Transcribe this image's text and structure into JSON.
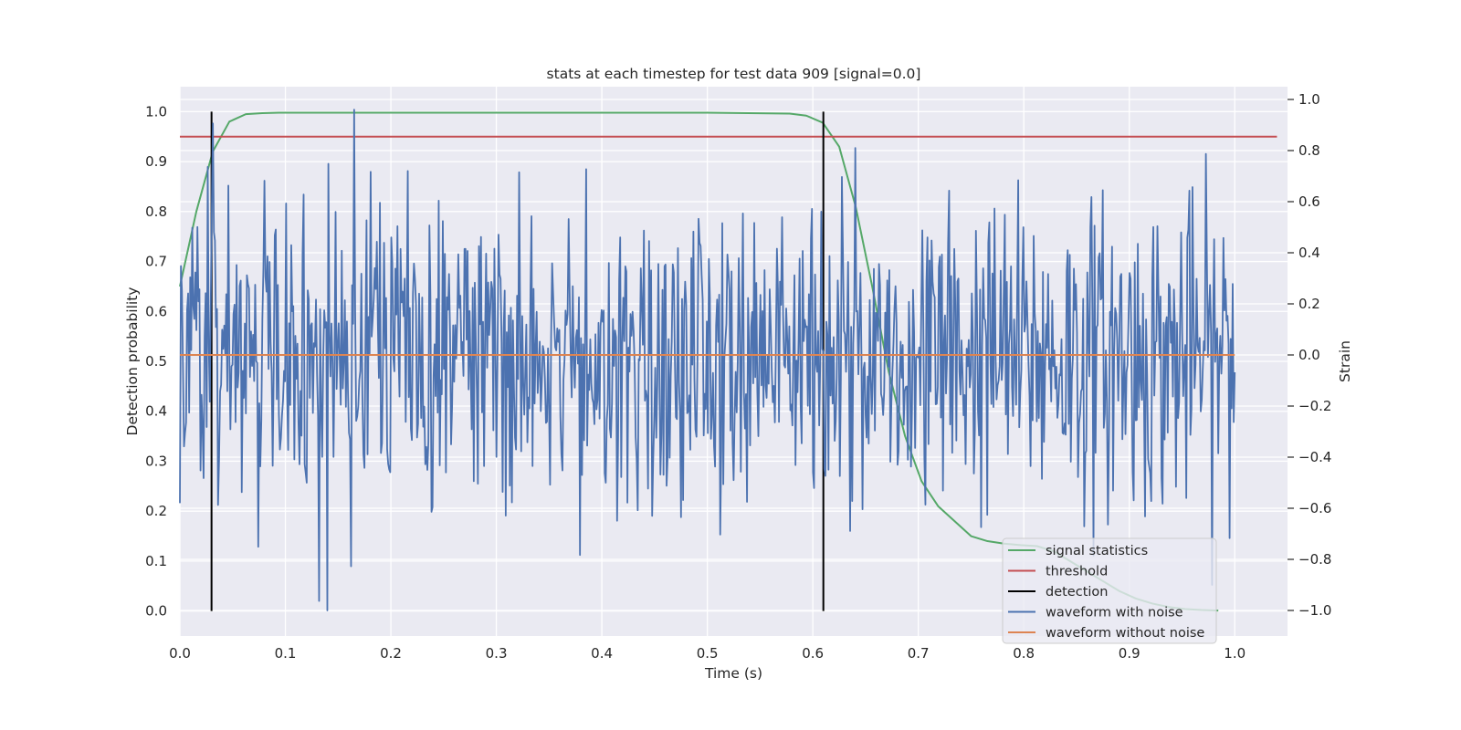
{
  "chart_data": {
    "type": "line",
    "title": "stats at each timestep for test data 909 [signal=0.0]",
    "xlabel": "Time (s)",
    "ylabel": "Detection probability",
    "y2label": "Strain",
    "xlim": [
      0.0,
      1.05
    ],
    "ylim": [
      -0.05,
      1.05
    ],
    "y2lim": [
      -1.1,
      1.05
    ],
    "grid": true,
    "legend_position": "bottom-right",
    "x_ticks": [
      "0.0",
      "0.1",
      "0.2",
      "0.3",
      "0.4",
      "0.5",
      "0.6",
      "0.7",
      "0.8",
      "0.9",
      "1.0"
    ],
    "y_ticks": [
      "0.0",
      "0.1",
      "0.2",
      "0.3",
      "0.4",
      "0.5",
      "0.6",
      "0.7",
      "0.8",
      "0.9",
      "1.0"
    ],
    "y2_ticks": [
      "−1.0",
      "−0.8",
      "−0.6",
      "−0.4",
      "−0.2",
      "0.0",
      "0.2",
      "0.4",
      "0.6",
      "0.8",
      "1.0"
    ],
    "series": [
      {
        "name": "signal statistics",
        "axis": "left",
        "color": "#55a868",
        "x": [
          0.0,
          0.0156,
          0.0312,
          0.0469,
          0.0625,
          0.0781,
          0.0938,
          0.5,
          0.5781,
          0.5938,
          0.6094,
          0.625,
          0.6406,
          0.6563,
          0.6719,
          0.6875,
          0.7031,
          0.7188,
          0.7344,
          0.75,
          0.7656,
          0.7813,
          0.7969,
          0.8125,
          0.8281,
          0.8438,
          0.8594,
          0.875,
          0.8906,
          0.9063,
          0.9219,
          0.9375,
          0.9531,
          0.9688,
          0.9844
        ],
        "values": [
          0.65,
          0.8,
          0.92,
          0.98,
          0.995,
          0.997,
          0.998,
          0.998,
          0.996,
          0.992,
          0.978,
          0.93,
          0.81,
          0.65,
          0.48,
          0.35,
          0.26,
          0.21,
          0.18,
          0.15,
          0.14,
          0.135,
          0.132,
          0.13,
          0.12,
          0.1,
          0.08,
          0.06,
          0.04,
          0.025,
          0.015,
          0.008,
          0.004,
          0.002,
          0.001
        ]
      },
      {
        "name": "threshold",
        "axis": "left",
        "color": "#c44e52",
        "x": [
          0.0,
          1.04
        ],
        "values": [
          0.95,
          0.95
        ]
      },
      {
        "name": "detection",
        "axis": "left",
        "color": "#000000",
        "x": [
          0.03,
          0.61
        ],
        "values": [
          [
            0.0,
            1.0
          ],
          [
            0.0,
            1.0
          ]
        ]
      },
      {
        "name": "waveform with noise",
        "axis": "right",
        "color": "#4c72b0",
        "x_range": [
          0.0,
          1.0
        ],
        "n_points": 1024,
        "approx_std": 0.3,
        "min": -1.0,
        "max": 0.96,
        "values": []
      },
      {
        "name": "waveform without noise",
        "axis": "right",
        "color": "#dd8452",
        "x": [
          0.0,
          1.0
        ],
        "values": [
          0.0,
          0.0
        ]
      }
    ]
  },
  "legend": {
    "items": [
      {
        "label": "signal statistics",
        "color": "#55a868"
      },
      {
        "label": "threshold",
        "color": "#c44e52"
      },
      {
        "label": "detection",
        "color": "#000000"
      },
      {
        "label": "waveform with noise",
        "color": "#4c72b0"
      },
      {
        "label": "waveform without noise",
        "color": "#dd8452"
      }
    ]
  },
  "colors": {
    "plot_background": "#eaeaf2",
    "grid": "#ffffff",
    "text": "#262626"
  }
}
